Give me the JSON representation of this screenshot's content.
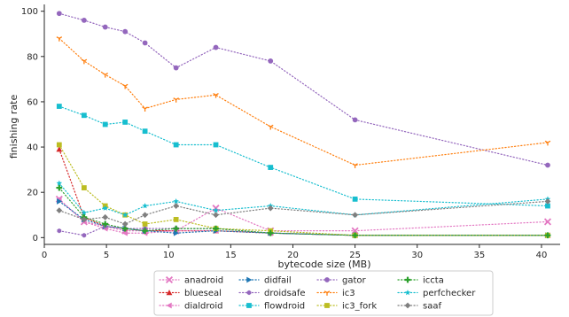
{
  "chart_data": {
    "type": "line",
    "title": "",
    "xlabel": "bytecode size (MB)",
    "ylabel": "finishing rate",
    "xlim": [
      0,
      41.5
    ],
    "ylim": [
      -3,
      103
    ],
    "xticks": [
      0,
      5,
      10,
      15,
      20,
      25,
      30,
      35,
      40
    ],
    "yticks": [
      0,
      20,
      40,
      60,
      80,
      100
    ],
    "grid": false,
    "legend_position": "bottom-center",
    "x": [
      1.2,
      3.2,
      4.9,
      6.5,
      8.1,
      10.6,
      13.8,
      18.2,
      25.0,
      40.5
    ],
    "series": [
      {
        "name": "anadroid",
        "color": "#e377c2",
        "marker": "x",
        "values": [
          17,
          7,
          5,
          3,
          3,
          3,
          13,
          3,
          3,
          7
        ]
      },
      {
        "name": "blueseal",
        "color": "#d62728",
        "marker": "triangle-up",
        "values": [
          39,
          9,
          5,
          4,
          3,
          3,
          3,
          2,
          1,
          1
        ]
      },
      {
        "name": "dialdroid",
        "color": "#e377c2",
        "marker": "triangle-left",
        "values": [
          17,
          7,
          4,
          2,
          2,
          3,
          3,
          2,
          1,
          1
        ]
      },
      {
        "name": "didfail",
        "color": "#1f77b4",
        "marker": "triangle-right",
        "values": [
          16,
          8,
          5,
          4,
          3,
          2,
          3,
          2,
          1,
          1
        ]
      },
      {
        "name": "droidsafe",
        "color": "#9467bd",
        "marker": "hexagon",
        "values": [
          3,
          1,
          5,
          4,
          4,
          4,
          4,
          2,
          1,
          1
        ]
      },
      {
        "name": "flowdroid",
        "color": "#17becf",
        "marker": "square",
        "values": [
          58,
          54,
          50,
          51,
          47,
          41,
          41,
          31,
          17,
          14
        ]
      },
      {
        "name": "gator",
        "color": "#9467bd",
        "marker": "circle",
        "values": [
          99,
          96,
          93,
          91,
          86,
          75,
          84,
          78,
          52,
          32
        ]
      },
      {
        "name": "ic3",
        "color": "#ff7f0e",
        "marker": "tri-down",
        "values": [
          88,
          78,
          72,
          67,
          57,
          61,
          63,
          49,
          32,
          42
        ]
      },
      {
        "name": "ic3_fork",
        "color": "#bcbd22",
        "marker": "square",
        "values": [
          41,
          22,
          14,
          10,
          6,
          8,
          4,
          3,
          1,
          1
        ]
      },
      {
        "name": "iccta",
        "color": "#2ca02c",
        "marker": "plus",
        "values": [
          22,
          9,
          6,
          4,
          3,
          4,
          4,
          2,
          1,
          1
        ]
      },
      {
        "name": "perfchecker",
        "color": "#17becf",
        "marker": "star",
        "values": [
          24,
          11,
          13,
          10,
          14,
          16,
          12,
          14,
          10,
          17
        ]
      },
      {
        "name": "saaf",
        "color": "#7f7f7f",
        "marker": "diamond",
        "values": [
          12,
          8,
          9,
          6,
          10,
          14,
          10,
          13,
          10,
          16
        ]
      }
    ]
  }
}
